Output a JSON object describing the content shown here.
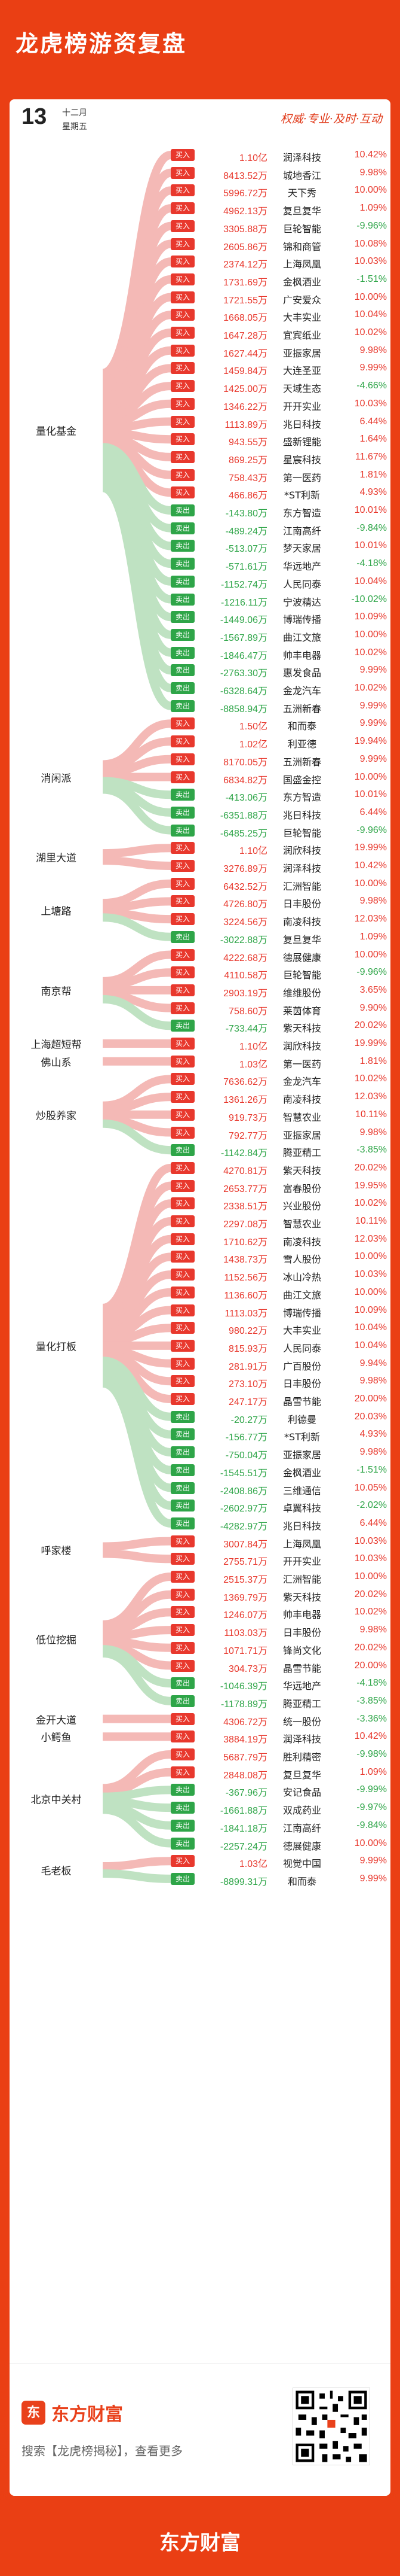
{
  "title": "龙虎榜游资复盘",
  "date": {
    "day": "13",
    "month": "十二月",
    "weekday": "星期五"
  },
  "slogan": "权威·专业·及时·互动",
  "colors": {
    "buy": "#e8382d",
    "sell": "#2ea548",
    "accent": "#ea3f14",
    "link_buy": "#f4b9b6",
    "link_sell": "#bfe2c2"
  },
  "groups": [
    {
      "name": "量化基金",
      "rows": [
        {
          "type": "买入",
          "amount": "1.10亿",
          "stock": "润泽科技",
          "pct": "10.42%"
        },
        {
          "type": "买入",
          "amount": "8413.52万",
          "stock": "城地香江",
          "pct": "9.98%"
        },
        {
          "type": "买入",
          "amount": "5996.72万",
          "stock": "天下秀",
          "pct": "10.00%"
        },
        {
          "type": "买入",
          "amount": "4962.13万",
          "stock": "复旦复华",
          "pct": "1.09%"
        },
        {
          "type": "买入",
          "amount": "3305.88万",
          "stock": "巨轮智能",
          "pct": "-9.96%"
        },
        {
          "type": "买入",
          "amount": "2605.86万",
          "stock": "锦和商管",
          "pct": "10.08%"
        },
        {
          "type": "买入",
          "amount": "2374.12万",
          "stock": "上海凤凰",
          "pct": "10.03%"
        },
        {
          "type": "买入",
          "amount": "1731.69万",
          "stock": "金枫酒业",
          "pct": "-1.51%"
        },
        {
          "type": "买入",
          "amount": "1721.55万",
          "stock": "广安爱众",
          "pct": "10.00%"
        },
        {
          "type": "买入",
          "amount": "1668.05万",
          "stock": "大丰实业",
          "pct": "10.04%"
        },
        {
          "type": "买入",
          "amount": "1647.28万",
          "stock": "宜宾纸业",
          "pct": "10.02%"
        },
        {
          "type": "买入",
          "amount": "1627.44万",
          "stock": "亚振家居",
          "pct": "9.98%"
        },
        {
          "type": "买入",
          "amount": "1459.84万",
          "stock": "大连圣亚",
          "pct": "9.99%"
        },
        {
          "type": "买入",
          "amount": "1425.00万",
          "stock": "天域生态",
          "pct": "-4.66%"
        },
        {
          "type": "买入",
          "amount": "1346.22万",
          "stock": "开开实业",
          "pct": "10.03%"
        },
        {
          "type": "买入",
          "amount": "1113.89万",
          "stock": "兆日科技",
          "pct": "6.44%"
        },
        {
          "type": "买入",
          "amount": "943.55万",
          "stock": "盛新锂能",
          "pct": "1.64%"
        },
        {
          "type": "买入",
          "amount": "869.25万",
          "stock": "星宸科技",
          "pct": "11.67%"
        },
        {
          "type": "买入",
          "amount": "758.43万",
          "stock": "第一医药",
          "pct": "1.81%"
        },
        {
          "type": "买入",
          "amount": "466.86万",
          "stock": "*ST利新",
          "pct": "4.93%"
        },
        {
          "type": "卖出",
          "amount": "-143.80万",
          "stock": "东方智造",
          "pct": "10.01%"
        },
        {
          "type": "卖出",
          "amount": "-489.24万",
          "stock": "江南高纤",
          "pct": "-9.84%"
        },
        {
          "type": "卖出",
          "amount": "-513.07万",
          "stock": "梦天家居",
          "pct": "10.01%"
        },
        {
          "type": "卖出",
          "amount": "-571.61万",
          "stock": "华远地产",
          "pct": "-4.18%"
        },
        {
          "type": "卖出",
          "amount": "-1152.74万",
          "stock": "人民同泰",
          "pct": "10.04%"
        },
        {
          "type": "卖出",
          "amount": "-1216.11万",
          "stock": "宁波精达",
          "pct": "-10.02%"
        },
        {
          "type": "卖出",
          "amount": "-1449.06万",
          "stock": "博瑞传播",
          "pct": "10.09%"
        },
        {
          "type": "卖出",
          "amount": "-1567.89万",
          "stock": "曲江文旅",
          "pct": "10.00%"
        },
        {
          "type": "卖出",
          "amount": "-1846.47万",
          "stock": "帅丰电器",
          "pct": "10.02%"
        },
        {
          "type": "卖出",
          "amount": "-2763.30万",
          "stock": "惠发食品",
          "pct": "9.99%"
        },
        {
          "type": "卖出",
          "amount": "-6328.64万",
          "stock": "金龙汽车",
          "pct": "10.02%"
        },
        {
          "type": "卖出",
          "amount": "-8858.94万",
          "stock": "五洲新春",
          "pct": "9.99%"
        }
      ]
    },
    {
      "name": "消闲派",
      "rows": [
        {
          "type": "买入",
          "amount": "1.50亿",
          "stock": "和而泰",
          "pct": "9.99%"
        },
        {
          "type": "买入",
          "amount": "1.02亿",
          "stock": "利亚德",
          "pct": "19.94%"
        },
        {
          "type": "买入",
          "amount": "8170.05万",
          "stock": "五洲新春",
          "pct": "9.99%"
        },
        {
          "type": "买入",
          "amount": "6834.82万",
          "stock": "国盛金控",
          "pct": "10.00%"
        },
        {
          "type": "卖出",
          "amount": "-413.06万",
          "stock": "东方智造",
          "pct": "10.01%"
        },
        {
          "type": "卖出",
          "amount": "-6351.88万",
          "stock": "兆日科技",
          "pct": "6.44%"
        },
        {
          "type": "卖出",
          "amount": "-6485.25万",
          "stock": "巨轮智能",
          "pct": "-9.96%"
        }
      ]
    },
    {
      "name": "湖里大道",
      "rows": [
        {
          "type": "买入",
          "amount": "1.10亿",
          "stock": "润欣科技",
          "pct": "19.99%"
        },
        {
          "type": "买入",
          "amount": "3276.89万",
          "stock": "润泽科技",
          "pct": "10.42%"
        }
      ]
    },
    {
      "name": "上塘路",
      "rows": [
        {
          "type": "买入",
          "amount": "6432.52万",
          "stock": "汇洲智能",
          "pct": "10.00%"
        },
        {
          "type": "买入",
          "amount": "4726.80万",
          "stock": "日丰股份",
          "pct": "9.98%"
        },
        {
          "type": "买入",
          "amount": "3224.56万",
          "stock": "南凌科技",
          "pct": "12.03%"
        },
        {
          "type": "卖出",
          "amount": "-3022.88万",
          "stock": "复旦复华",
          "pct": "1.09%"
        }
      ]
    },
    {
      "name": "南京帮",
      "rows": [
        {
          "type": "买入",
          "amount": "4222.68万",
          "stock": "德展健康",
          "pct": "10.00%"
        },
        {
          "type": "买入",
          "amount": "4110.58万",
          "stock": "巨轮智能",
          "pct": "-9.96%"
        },
        {
          "type": "买入",
          "amount": "2903.19万",
          "stock": "维维股份",
          "pct": "3.65%"
        },
        {
          "type": "买入",
          "amount": "758.60万",
          "stock": "莱茵体育",
          "pct": "9.90%"
        },
        {
          "type": "卖出",
          "amount": "-733.44万",
          "stock": "紫天科技",
          "pct": "20.02%"
        }
      ]
    },
    {
      "name": "上海超短帮",
      "rows": [
        {
          "type": "买入",
          "amount": "1.10亿",
          "stock": "润欣科技",
          "pct": "19.99%"
        }
      ]
    },
    {
      "name": "佛山系",
      "rows": [
        {
          "type": "买入",
          "amount": "1.03亿",
          "stock": "第一医药",
          "pct": "1.81%"
        }
      ]
    },
    {
      "name": "炒股养家",
      "rows": [
        {
          "type": "买入",
          "amount": "7636.62万",
          "stock": "金龙汽车",
          "pct": "10.02%"
        },
        {
          "type": "买入",
          "amount": "1361.26万",
          "stock": "南凌科技",
          "pct": "12.03%"
        },
        {
          "type": "买入",
          "amount": "919.73万",
          "stock": "智慧农业",
          "pct": "10.11%"
        },
        {
          "type": "买入",
          "amount": "792.77万",
          "stock": "亚振家居",
          "pct": "9.98%"
        },
        {
          "type": "卖出",
          "amount": "-1142.84万",
          "stock": "腾亚精工",
          "pct": "-3.85%"
        }
      ]
    },
    {
      "name": "量化打板",
      "rows": [
        {
          "type": "买入",
          "amount": "4270.81万",
          "stock": "紫天科技",
          "pct": "20.02%"
        },
        {
          "type": "买入",
          "amount": "2653.77万",
          "stock": "富春股份",
          "pct": "19.95%"
        },
        {
          "type": "买入",
          "amount": "2338.51万",
          "stock": "兴业股份",
          "pct": "10.02%"
        },
        {
          "type": "买入",
          "amount": "2297.08万",
          "stock": "智慧农业",
          "pct": "10.11%"
        },
        {
          "type": "买入",
          "amount": "1710.62万",
          "stock": "南凌科技",
          "pct": "12.03%"
        },
        {
          "type": "买入",
          "amount": "1438.73万",
          "stock": "雪人股份",
          "pct": "10.00%"
        },
        {
          "type": "买入",
          "amount": "1152.56万",
          "stock": "冰山冷热",
          "pct": "10.03%"
        },
        {
          "type": "买入",
          "amount": "1136.60万",
          "stock": "曲江文旅",
          "pct": "10.00%"
        },
        {
          "type": "买入",
          "amount": "1113.03万",
          "stock": "博瑞传播",
          "pct": "10.09%"
        },
        {
          "type": "买入",
          "amount": "980.22万",
          "stock": "大丰实业",
          "pct": "10.04%"
        },
        {
          "type": "买入",
          "amount": "815.93万",
          "stock": "人民同泰",
          "pct": "10.04%"
        },
        {
          "type": "买入",
          "amount": "281.91万",
          "stock": "广百股份",
          "pct": "9.94%"
        },
        {
          "type": "买入",
          "amount": "273.10万",
          "stock": "日丰股份",
          "pct": "9.98%"
        },
        {
          "type": "买入",
          "amount": "247.17万",
          "stock": "晶雪节能",
          "pct": "20.00%"
        },
        {
          "type": "卖出",
          "amount": "-20.27万",
          "stock": "利德曼",
          "pct": "20.03%"
        },
        {
          "type": "卖出",
          "amount": "-156.77万",
          "stock": "*ST利新",
          "pct": "4.93%"
        },
        {
          "type": "卖出",
          "amount": "-750.04万",
          "stock": "亚振家居",
          "pct": "9.98%"
        },
        {
          "type": "卖出",
          "amount": "-1545.51万",
          "stock": "金枫酒业",
          "pct": "-1.51%"
        },
        {
          "type": "卖出",
          "amount": "-2408.86万",
          "stock": "三维通信",
          "pct": "10.05%"
        },
        {
          "type": "卖出",
          "amount": "-2602.97万",
          "stock": "卓翼科技",
          "pct": "-2.02%"
        },
        {
          "type": "卖出",
          "amount": "-4282.97万",
          "stock": "兆日科技",
          "pct": "6.44%"
        }
      ]
    },
    {
      "name": "呼家楼",
      "rows": [
        {
          "type": "买入",
          "amount": "3007.84万",
          "stock": "上海凤凰",
          "pct": "10.03%"
        },
        {
          "type": "买入",
          "amount": "2755.71万",
          "stock": "开开实业",
          "pct": "10.03%"
        }
      ]
    },
    {
      "name": "低位挖掘",
      "rows": [
        {
          "type": "买入",
          "amount": "2515.37万",
          "stock": "汇洲智能",
          "pct": "10.00%"
        },
        {
          "type": "买入",
          "amount": "1369.79万",
          "stock": "紫天科技",
          "pct": "20.02%"
        },
        {
          "type": "买入",
          "amount": "1246.07万",
          "stock": "帅丰电器",
          "pct": "10.02%"
        },
        {
          "type": "买入",
          "amount": "1103.03万",
          "stock": "日丰股份",
          "pct": "9.98%"
        },
        {
          "type": "买入",
          "amount": "1071.71万",
          "stock": "锋尚文化",
          "pct": "20.02%"
        },
        {
          "type": "买入",
          "amount": "304.73万",
          "stock": "晶雪节能",
          "pct": "20.00%"
        },
        {
          "type": "卖出",
          "amount": "-1046.39万",
          "stock": "华远地产",
          "pct": "-4.18%"
        },
        {
          "type": "卖出",
          "amount": "-1178.89万",
          "stock": "腾亚精工",
          "pct": "-3.85%"
        }
      ]
    },
    {
      "name": "金开大道",
      "rows": [
        {
          "type": "买入",
          "amount": "4306.72万",
          "stock": "统一股份",
          "pct": "-3.36%"
        }
      ]
    },
    {
      "name": "小鳄鱼",
      "rows": [
        {
          "type": "买入",
          "amount": "3884.19万",
          "stock": "润泽科技",
          "pct": "10.42%"
        }
      ]
    },
    {
      "name": "北京中关村",
      "rows": [
        {
          "type": "买入",
          "amount": "5687.79万",
          "stock": "胜利精密",
          "pct": "-9.98%"
        },
        {
          "type": "买入",
          "amount": "2848.08万",
          "stock": "复旦复华",
          "pct": "1.09%"
        },
        {
          "type": "卖出",
          "amount": "-367.96万",
          "stock": "安记食品",
          "pct": "-9.99%"
        },
        {
          "type": "卖出",
          "amount": "-1661.88万",
          "stock": "双成药业",
          "pct": "-9.97%"
        },
        {
          "type": "卖出",
          "amount": "-1841.18万",
          "stock": "江南高纤",
          "pct": "-9.84%"
        },
        {
          "type": "卖出",
          "amount": "-2257.24万",
          "stock": "德展健康",
          "pct": "10.00%"
        }
      ]
    },
    {
      "name": "毛老板",
      "rows": [
        {
          "type": "买入",
          "amount": "1.03亿",
          "stock": "视觉中国",
          "pct": "9.99%"
        },
        {
          "type": "卖出",
          "amount": "-8899.31万",
          "stock": "和而泰",
          "pct": "9.99%"
        }
      ]
    }
  ],
  "footer": {
    "logo_text": "东方财富",
    "logo_icon": "东",
    "hint": "搜索【龙虎榜揭秘】，查看更多",
    "qr_icon": "qr-code-icon"
  },
  "brand": "东方财富"
}
